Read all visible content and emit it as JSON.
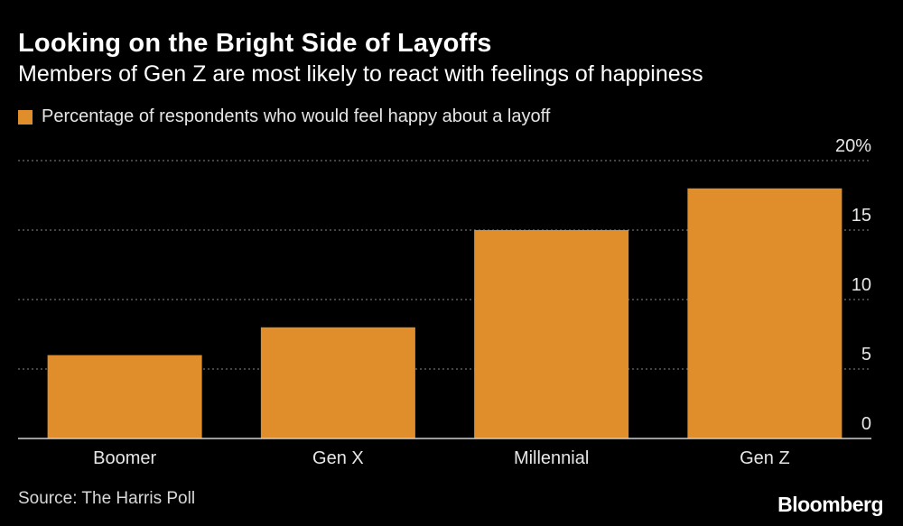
{
  "title": "Looking on the Bright Side of Layoffs",
  "subtitle": "Members of Gen Z are most likely to react with feelings of happiness",
  "source": "Source: The Harris Poll",
  "brand": "Bloomberg",
  "colors": {
    "bar": "#e08e2b",
    "background": "#000000",
    "grid": "#8a8a8a"
  },
  "chart_data": {
    "type": "bar",
    "categories": [
      "Boomer",
      "Gen X",
      "Millennial",
      "Gen Z"
    ],
    "series": [
      {
        "name": "Percentage of respondents who would feel happy about a layoff",
        "values": [
          6,
          8,
          15,
          18
        ]
      }
    ],
    "ylim": [
      0,
      20
    ],
    "yticks": [
      "0",
      "5",
      "10",
      "15",
      "20%"
    ],
    "ytick_values": [
      0,
      5,
      10,
      15,
      20
    ],
    "grid": true,
    "legend_position": "top-left",
    "axis_position": "right"
  }
}
